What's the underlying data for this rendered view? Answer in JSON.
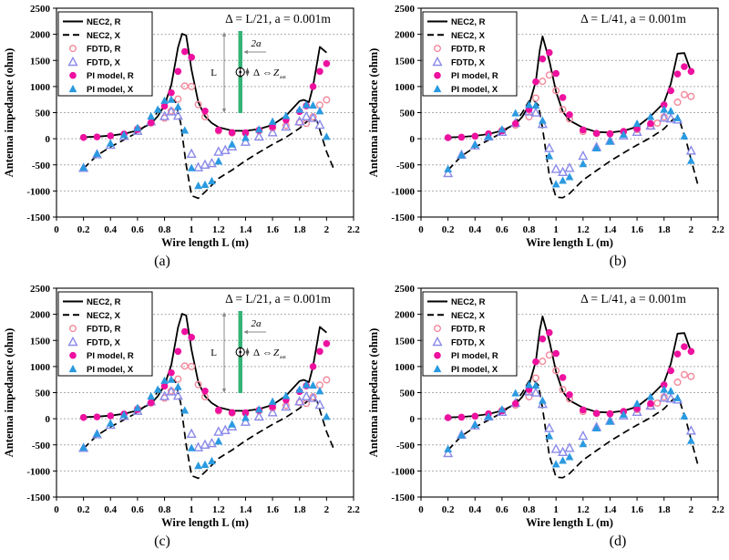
{
  "figure": {
    "background": "#ffffff",
    "description_visible_panels": [
      "(a)",
      "(b)",
      "(c)",
      "(d)"
    ]
  },
  "axes": {
    "x_label": "Wire length L (m)",
    "y_label": "Antenna impedance (ohm)",
    "x_lim": [
      0,
      2.2
    ],
    "y_lim": [
      -1500,
      2500
    ],
    "x_tick_labels": [
      "0",
      "0.2",
      "0.4",
      "0.6",
      "0.8",
      "1",
      "1.2",
      "1.4",
      "1.6",
      "1.8",
      "2",
      "2.2"
    ],
    "y_tick_labels": [
      "2500",
      "2000",
      "1500",
      "1000",
      "500",
      "0",
      "-500",
      "-1000",
      "-1500"
    ],
    "grid": "horizontal-dotted",
    "grid_color": "#909090"
  },
  "legend": {
    "position": "top-left",
    "entries": [
      {
        "label": "NEC2, R",
        "style": "line-solid",
        "color": "#000000"
      },
      {
        "label": "NEC2, X",
        "style": "line-dashed",
        "color": "#000000"
      },
      {
        "label": "FDTD, R",
        "style": "circle-open",
        "color": "#f2889a"
      },
      {
        "label": "FDTD, X",
        "style": "triangle-open",
        "color": "#8a8ae8"
      },
      {
        "label": "PI model, R",
        "style": "circle-filled",
        "color": "#ee109e"
      },
      {
        "label": "PI model, X",
        "style": "triangle-filled",
        "color": "#2a9ae0"
      }
    ]
  },
  "inset": {
    "wire_color": "#35b376",
    "dim_color": "#888888",
    "labels": {
      "diameter": "2a",
      "length": "L",
      "gap": "Δ",
      "arrow": "⇔",
      "impedance": "Z",
      "impedance_sub": "ant"
    }
  },
  "layout": {
    "panels": [
      {
        "caption": "(a)",
        "chart_index": 0,
        "row": 0,
        "col": 0
      },
      {
        "caption": "(b)",
        "chart_index": 1,
        "row": 0,
        "col": 1
      },
      {
        "caption": "(c)",
        "chart_index": 0,
        "row": 1,
        "col": 0
      },
      {
        "caption": "(d)",
        "chart_index": 1,
        "row": 1,
        "col": 1
      }
    ]
  },
  "chart_data": [
    {
      "type": "line",
      "panels": [
        "(a)",
        "(c)"
      ],
      "annotation": "Δ = L/21, a = 0.001m",
      "show_inset": true,
      "xlabel": "Wire length L (m)",
      "ylabel": "Antenna impedance (ohm)",
      "xlim": [
        0,
        2.2
      ],
      "ylim": [
        -1500,
        2500
      ],
      "series": [
        {
          "name": "NEC2, R",
          "style": "line-solid",
          "color": "#000000",
          "x": [
            0.2,
            0.3,
            0.4,
            0.5,
            0.6,
            0.7,
            0.75,
            0.8,
            0.85,
            0.9,
            0.93,
            0.96,
            1.0,
            1.05,
            1.1,
            1.15,
            1.2,
            1.3,
            1.4,
            1.5,
            1.6,
            1.7,
            1.75,
            1.8,
            1.83,
            1.87,
            1.9,
            1.95,
            2.0
          ],
          "y": [
            30,
            40,
            60,
            95,
            160,
            290,
            430,
            640,
            1030,
            1750,
            2010,
            1980,
            1320,
            700,
            430,
            300,
            220,
            155,
            150,
            185,
            265,
            440,
            580,
            720,
            745,
            700,
            1000,
            1760,
            1650
          ]
        },
        {
          "name": "NEC2, X",
          "style": "line-dashed",
          "color": "#000000",
          "x": [
            0.2,
            0.3,
            0.4,
            0.5,
            0.6,
            0.7,
            0.75,
            0.8,
            0.84,
            0.88,
            0.92,
            0.96,
            1.0,
            1.05,
            1.1,
            1.2,
            1.3,
            1.4,
            1.5,
            1.6,
            1.7,
            1.8,
            1.88,
            1.93,
            1.97,
            2.0,
            2.05
          ],
          "y": [
            -570,
            -320,
            -155,
            -20,
            125,
            335,
            520,
            700,
            780,
            720,
            300,
            -500,
            -1090,
            -1140,
            -1020,
            -760,
            -600,
            -420,
            -260,
            -110,
            30,
            200,
            390,
            340,
            0,
            -250,
            -560
          ]
        },
        {
          "name": "FDTD, R",
          "style": "circle-open",
          "color": "#f2889a",
          "x": [
            0.6,
            0.7,
            0.8,
            0.85,
            0.9,
            0.95,
            1.0,
            1.05,
            1.1,
            1.2,
            1.3,
            1.4,
            1.5,
            1.6,
            1.7,
            1.8,
            1.85,
            1.9,
            1.95,
            2.0
          ],
          "y": [
            190,
            300,
            395,
            530,
            760,
            1010,
            1000,
            655,
            420,
            150,
            110,
            105,
            150,
            205,
            255,
            310,
            295,
            420,
            645,
            745
          ]
        },
        {
          "name": "FDTD, X",
          "style": "triangle-open",
          "color": "#8a8ae8",
          "x": [
            0.2,
            0.3,
            0.4,
            0.5,
            0.6,
            0.7,
            0.8,
            0.85,
            0.9,
            1.0,
            1.05,
            1.1,
            1.15,
            1.2,
            1.25,
            1.3,
            1.4,
            1.5,
            1.6,
            1.7,
            1.8,
            1.85,
            1.9,
            1.95
          ],
          "y": [
            -560,
            -300,
            -120,
            50,
            150,
            330,
            430,
            520,
            440,
            -290,
            -550,
            -500,
            -470,
            -250,
            -220,
            -150,
            -60,
            40,
            120,
            230,
            330,
            425,
            395,
            265
          ]
        },
        {
          "name": "PI model, R",
          "style": "circle-filled",
          "color": "#ee109e",
          "x": [
            0.2,
            0.3,
            0.4,
            0.5,
            0.6,
            0.7,
            0.8,
            0.85,
            0.9,
            0.95,
            1.0,
            1.1,
            1.2,
            1.3,
            1.4,
            1.5,
            1.6,
            1.7,
            1.8,
            1.85,
            1.9,
            1.95,
            2.0
          ],
          "y": [
            25,
            35,
            55,
            90,
            175,
            310,
            625,
            880,
            1290,
            1670,
            1560,
            530,
            165,
            120,
            115,
            165,
            230,
            360,
            520,
            630,
            1000,
            1290,
            1440
          ]
        },
        {
          "name": "PI model, X",
          "style": "triangle-filled",
          "color": "#2a9ae0",
          "x": [
            0.2,
            0.3,
            0.4,
            0.5,
            0.6,
            0.7,
            0.75,
            0.8,
            0.85,
            0.9,
            0.95,
            1.0,
            1.05,
            1.1,
            1.15,
            1.2,
            1.3,
            1.4,
            1.5,
            1.6,
            1.7,
            1.8,
            1.85,
            1.9,
            1.95,
            2.0
          ],
          "y": [
            -550,
            -285,
            -85,
            75,
            210,
            430,
            560,
            730,
            750,
            610,
            160,
            -560,
            -900,
            -880,
            -810,
            -430,
            -105,
            20,
            180,
            330,
            440,
            560,
            650,
            640,
            530,
            40
          ]
        }
      ]
    },
    {
      "type": "line",
      "panels": [
        "(b)",
        "(d)"
      ],
      "annotation": "Δ = L/41, a = 0.001m",
      "show_inset": false,
      "xlabel": "Wire length L (m)",
      "ylabel": "Antenna impedance (ohm)",
      "xlim": [
        0,
        2.2
      ],
      "ylim": [
        -1500,
        2500
      ],
      "series": [
        {
          "name": "NEC2, R",
          "style": "line-solid",
          "color": "#000000",
          "x": [
            0.2,
            0.3,
            0.4,
            0.5,
            0.6,
            0.7,
            0.75,
            0.8,
            0.85,
            0.88,
            0.9,
            0.95,
            1.0,
            1.05,
            1.1,
            1.2,
            1.3,
            1.4,
            1.5,
            1.6,
            1.7,
            1.75,
            1.8,
            1.85,
            1.9,
            1.95,
            2.0
          ],
          "y": [
            25,
            35,
            55,
            90,
            155,
            280,
            420,
            640,
            1100,
            1700,
            1960,
            1500,
            900,
            520,
            350,
            210,
            130,
            120,
            150,
            230,
            430,
            560,
            690,
            1050,
            1630,
            1640,
            1280
          ]
        },
        {
          "name": "NEC2, X",
          "style": "line-dashed",
          "color": "#000000",
          "x": [
            0.2,
            0.3,
            0.4,
            0.5,
            0.6,
            0.7,
            0.75,
            0.8,
            0.83,
            0.87,
            0.9,
            0.95,
            1.0,
            1.05,
            1.1,
            1.2,
            1.3,
            1.4,
            1.5,
            1.6,
            1.7,
            1.8,
            1.87,
            1.92,
            1.97,
            2.0,
            2.05
          ],
          "y": [
            -600,
            -330,
            -160,
            -25,
            115,
            320,
            500,
            720,
            750,
            640,
            200,
            -700,
            -1120,
            -1130,
            -1050,
            -790,
            -610,
            -430,
            -270,
            -120,
            20,
            190,
            380,
            310,
            -100,
            -400,
            -880
          ]
        },
        {
          "name": "FDTD, R",
          "style": "circle-open",
          "color": "#f2889a",
          "x": [
            0.6,
            0.7,
            0.8,
            0.85,
            0.9,
            0.95,
            1.0,
            1.05,
            1.1,
            1.2,
            1.3,
            1.4,
            1.5,
            1.6,
            1.7,
            1.75,
            1.8,
            1.9,
            1.95,
            2.0
          ],
          "y": [
            160,
            260,
            420,
            780,
            1100,
            1220,
            920,
            560,
            380,
            140,
            100,
            95,
            130,
            175,
            240,
            300,
            420,
            700,
            845,
            810
          ]
        },
        {
          "name": "FDTD, X",
          "style": "triangle-open",
          "color": "#8a8ae8",
          "x": [
            0.2,
            0.3,
            0.4,
            0.5,
            0.6,
            0.7,
            0.8,
            0.85,
            0.9,
            0.95,
            1.0,
            1.05,
            1.1,
            1.2,
            1.3,
            1.4,
            1.5,
            1.6,
            1.7,
            1.8,
            1.85,
            1.9,
            2.0
          ],
          "y": [
            -660,
            -310,
            -130,
            40,
            130,
            300,
            520,
            500,
            280,
            -180,
            -580,
            -640,
            -560,
            -330,
            -160,
            -40,
            60,
            130,
            250,
            400,
            385,
            365,
            -230
          ]
        },
        {
          "name": "PI model, R",
          "style": "circle-filled",
          "color": "#ee109e",
          "x": [
            0.2,
            0.3,
            0.4,
            0.5,
            0.6,
            0.7,
            0.8,
            0.85,
            0.9,
            0.95,
            1.0,
            1.05,
            1.1,
            1.2,
            1.3,
            1.4,
            1.5,
            1.6,
            1.7,
            1.8,
            1.85,
            1.9,
            1.95,
            2.0
          ],
          "y": [
            20,
            30,
            50,
            95,
            150,
            290,
            560,
            1090,
            1530,
            1650,
            1250,
            790,
            460,
            170,
            105,
            95,
            140,
            195,
            290,
            650,
            920,
            1240,
            1380,
            1290
          ]
        },
        {
          "name": "PI model, X",
          "style": "triangle-filled",
          "color": "#2a9ae0",
          "x": [
            0.2,
            0.3,
            0.4,
            0.5,
            0.6,
            0.7,
            0.8,
            0.85,
            0.9,
            0.95,
            1.0,
            1.05,
            1.1,
            1.2,
            1.3,
            1.4,
            1.5,
            1.6,
            1.7,
            1.8,
            1.85,
            1.9,
            1.95,
            2.0
          ],
          "y": [
            -580,
            -310,
            -110,
            45,
            180,
            490,
            650,
            640,
            350,
            -330,
            -870,
            -800,
            -730,
            -480,
            -180,
            -50,
            80,
            290,
            420,
            560,
            530,
            400,
            50,
            -420
          ]
        }
      ]
    }
  ]
}
